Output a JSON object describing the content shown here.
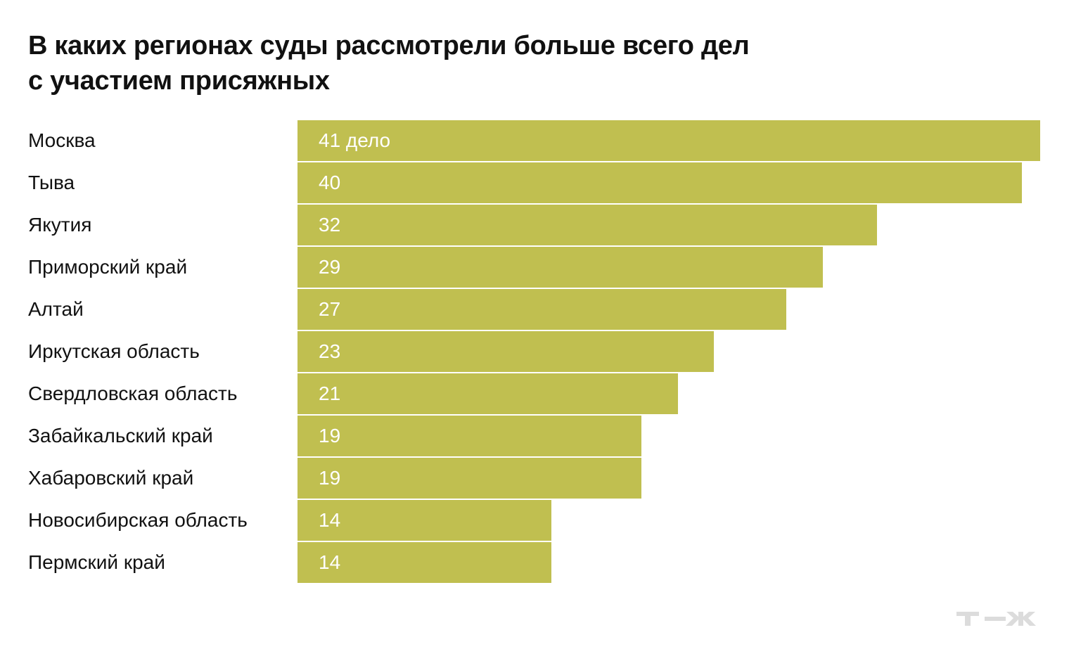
{
  "chart_data": {
    "type": "bar",
    "orientation": "horizontal",
    "title_lines": [
      "В каких регионах суды рассмотрели больше всего дел",
      "с участием присяжных"
    ],
    "categories": [
      "Москва",
      "Тыва",
      "Якутия",
      "Приморский край",
      "Алтай",
      "Иркутская область",
      "Свердловская область",
      "Забайкальский край",
      "Хабаровский край",
      "Новосибирская область",
      "Пермский край"
    ],
    "values": [
      41,
      40,
      32,
      29,
      27,
      23,
      21,
      19,
      19,
      14,
      14
    ],
    "data_labels": [
      "41 дело",
      "40",
      "32",
      "29",
      "27",
      "23",
      "21",
      "19",
      "19",
      "14",
      "14"
    ],
    "xlim": [
      0,
      41
    ],
    "grid": false,
    "bar_color": "#c0bf50",
    "label_color": "#ffffff"
  },
  "logo": {
    "text": "Т—Ж",
    "color": "#dcdcdc"
  }
}
